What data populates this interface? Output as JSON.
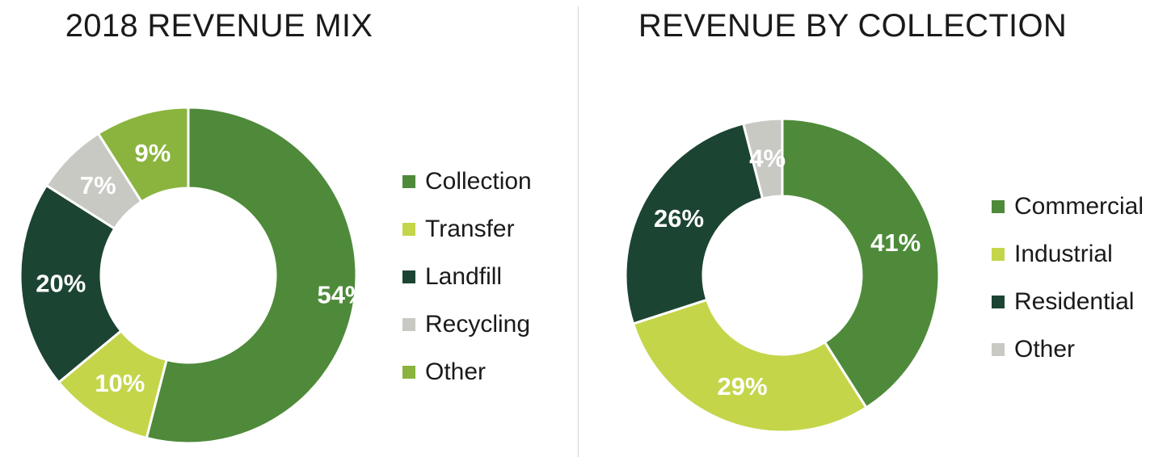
{
  "colors": {
    "collection": "#4e8a3a",
    "transfer": "#c4d54a",
    "landfill": "#1c4432",
    "recycling": "#c9c9c4",
    "other": "#8ab43d"
  },
  "chart_data": [
    {
      "type": "pie",
      "variant": "donut",
      "title": "2018 REVENUE MIX",
      "legend_position": "right",
      "slices": [
        {
          "name": "Collection",
          "value": 54,
          "label": "54%",
          "color": "#4e8a3a"
        },
        {
          "name": "Transfer",
          "value": 10,
          "label": "10%",
          "color": "#c4d54a"
        },
        {
          "name": "Landfill",
          "value": 20,
          "label": "20%",
          "color": "#1c4432"
        },
        {
          "name": "Recycling",
          "value": 7,
          "label": "7%",
          "color": "#c9c9c4"
        },
        {
          "name": "Other",
          "value": 9,
          "label": "9%",
          "color": "#8ab43d"
        }
      ]
    },
    {
      "type": "pie",
      "variant": "donut",
      "title": "REVENUE BY COLLECTION",
      "legend_position": "right",
      "slices": [
        {
          "name": "Commercial",
          "value": 41,
          "label": "41%",
          "color": "#4e8a3a"
        },
        {
          "name": "Industrial",
          "value": 29,
          "label": "29%",
          "color": "#c4d54a"
        },
        {
          "name": "Residential",
          "value": 26,
          "label": "26%",
          "color": "#1c4432"
        },
        {
          "name": "Other",
          "value": 4,
          "label": "4%",
          "color": "#c9c9c4"
        }
      ]
    }
  ]
}
